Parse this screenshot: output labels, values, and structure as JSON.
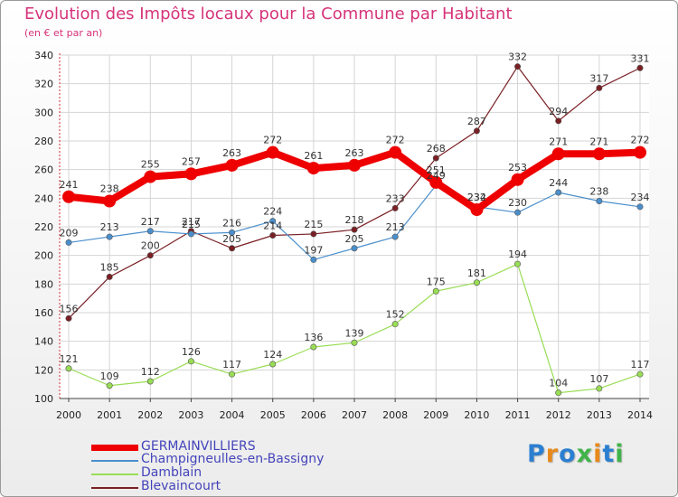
{
  "title": "Evolution des Impôts locaux pour la Commune par Habitant",
  "subtitle": "(en € et par an)",
  "colors": {
    "title": "#d6337a",
    "legend_text": "#4444bb",
    "axis": "#d22c2c",
    "grid": "#d4d4d4"
  },
  "chart_data": {
    "type": "line",
    "title": "Evolution des Impôts locaux pour la Commune par Habitant",
    "ylabel": "(en € et par an)",
    "xlabel": "",
    "ylim": [
      100,
      340
    ],
    "ystep": 20,
    "grid": true,
    "categories": [
      "2000",
      "2001",
      "2002",
      "2003",
      "2004",
      "2005",
      "2006",
      "2007",
      "2008",
      "2009",
      "2010",
      "2011",
      "2012",
      "2013",
      "2014"
    ],
    "series": [
      {
        "name": "GERMAINVILLIERS",
        "color": "#ee0000",
        "values": [
          241,
          238,
          255,
          257,
          263,
          272,
          261,
          263,
          272,
          251,
          232,
          253,
          271,
          271,
          272
        ]
      },
      {
        "name": "Champigneulles-en-Bassigny",
        "color": "#4a8fcc",
        "values": [
          209,
          213,
          217,
          215,
          216,
          224,
          197,
          205,
          213,
          249,
          234,
          230,
          244,
          238,
          234
        ]
      },
      {
        "name": "Damblain",
        "color": "#99dd55",
        "values": [
          121,
          109,
          112,
          126,
          117,
          124,
          136,
          139,
          152,
          175,
          181,
          194,
          104,
          107,
          117
        ]
      },
      {
        "name": "Blevaincourt",
        "color": "#7a1f24",
        "values": [
          156,
          185,
          200,
          217,
          205,
          214,
          215,
          218,
          233,
          268,
          287,
          332,
          294,
          317,
          331
        ]
      }
    ]
  },
  "brand": {
    "logo_text": "Proxiti",
    "letter_colors": [
      "#2b7fd1",
      "#e8891c",
      "#2b7fd1",
      "#3fb449",
      "#e8891c",
      "#2b7fd1",
      "#3fb449"
    ]
  }
}
